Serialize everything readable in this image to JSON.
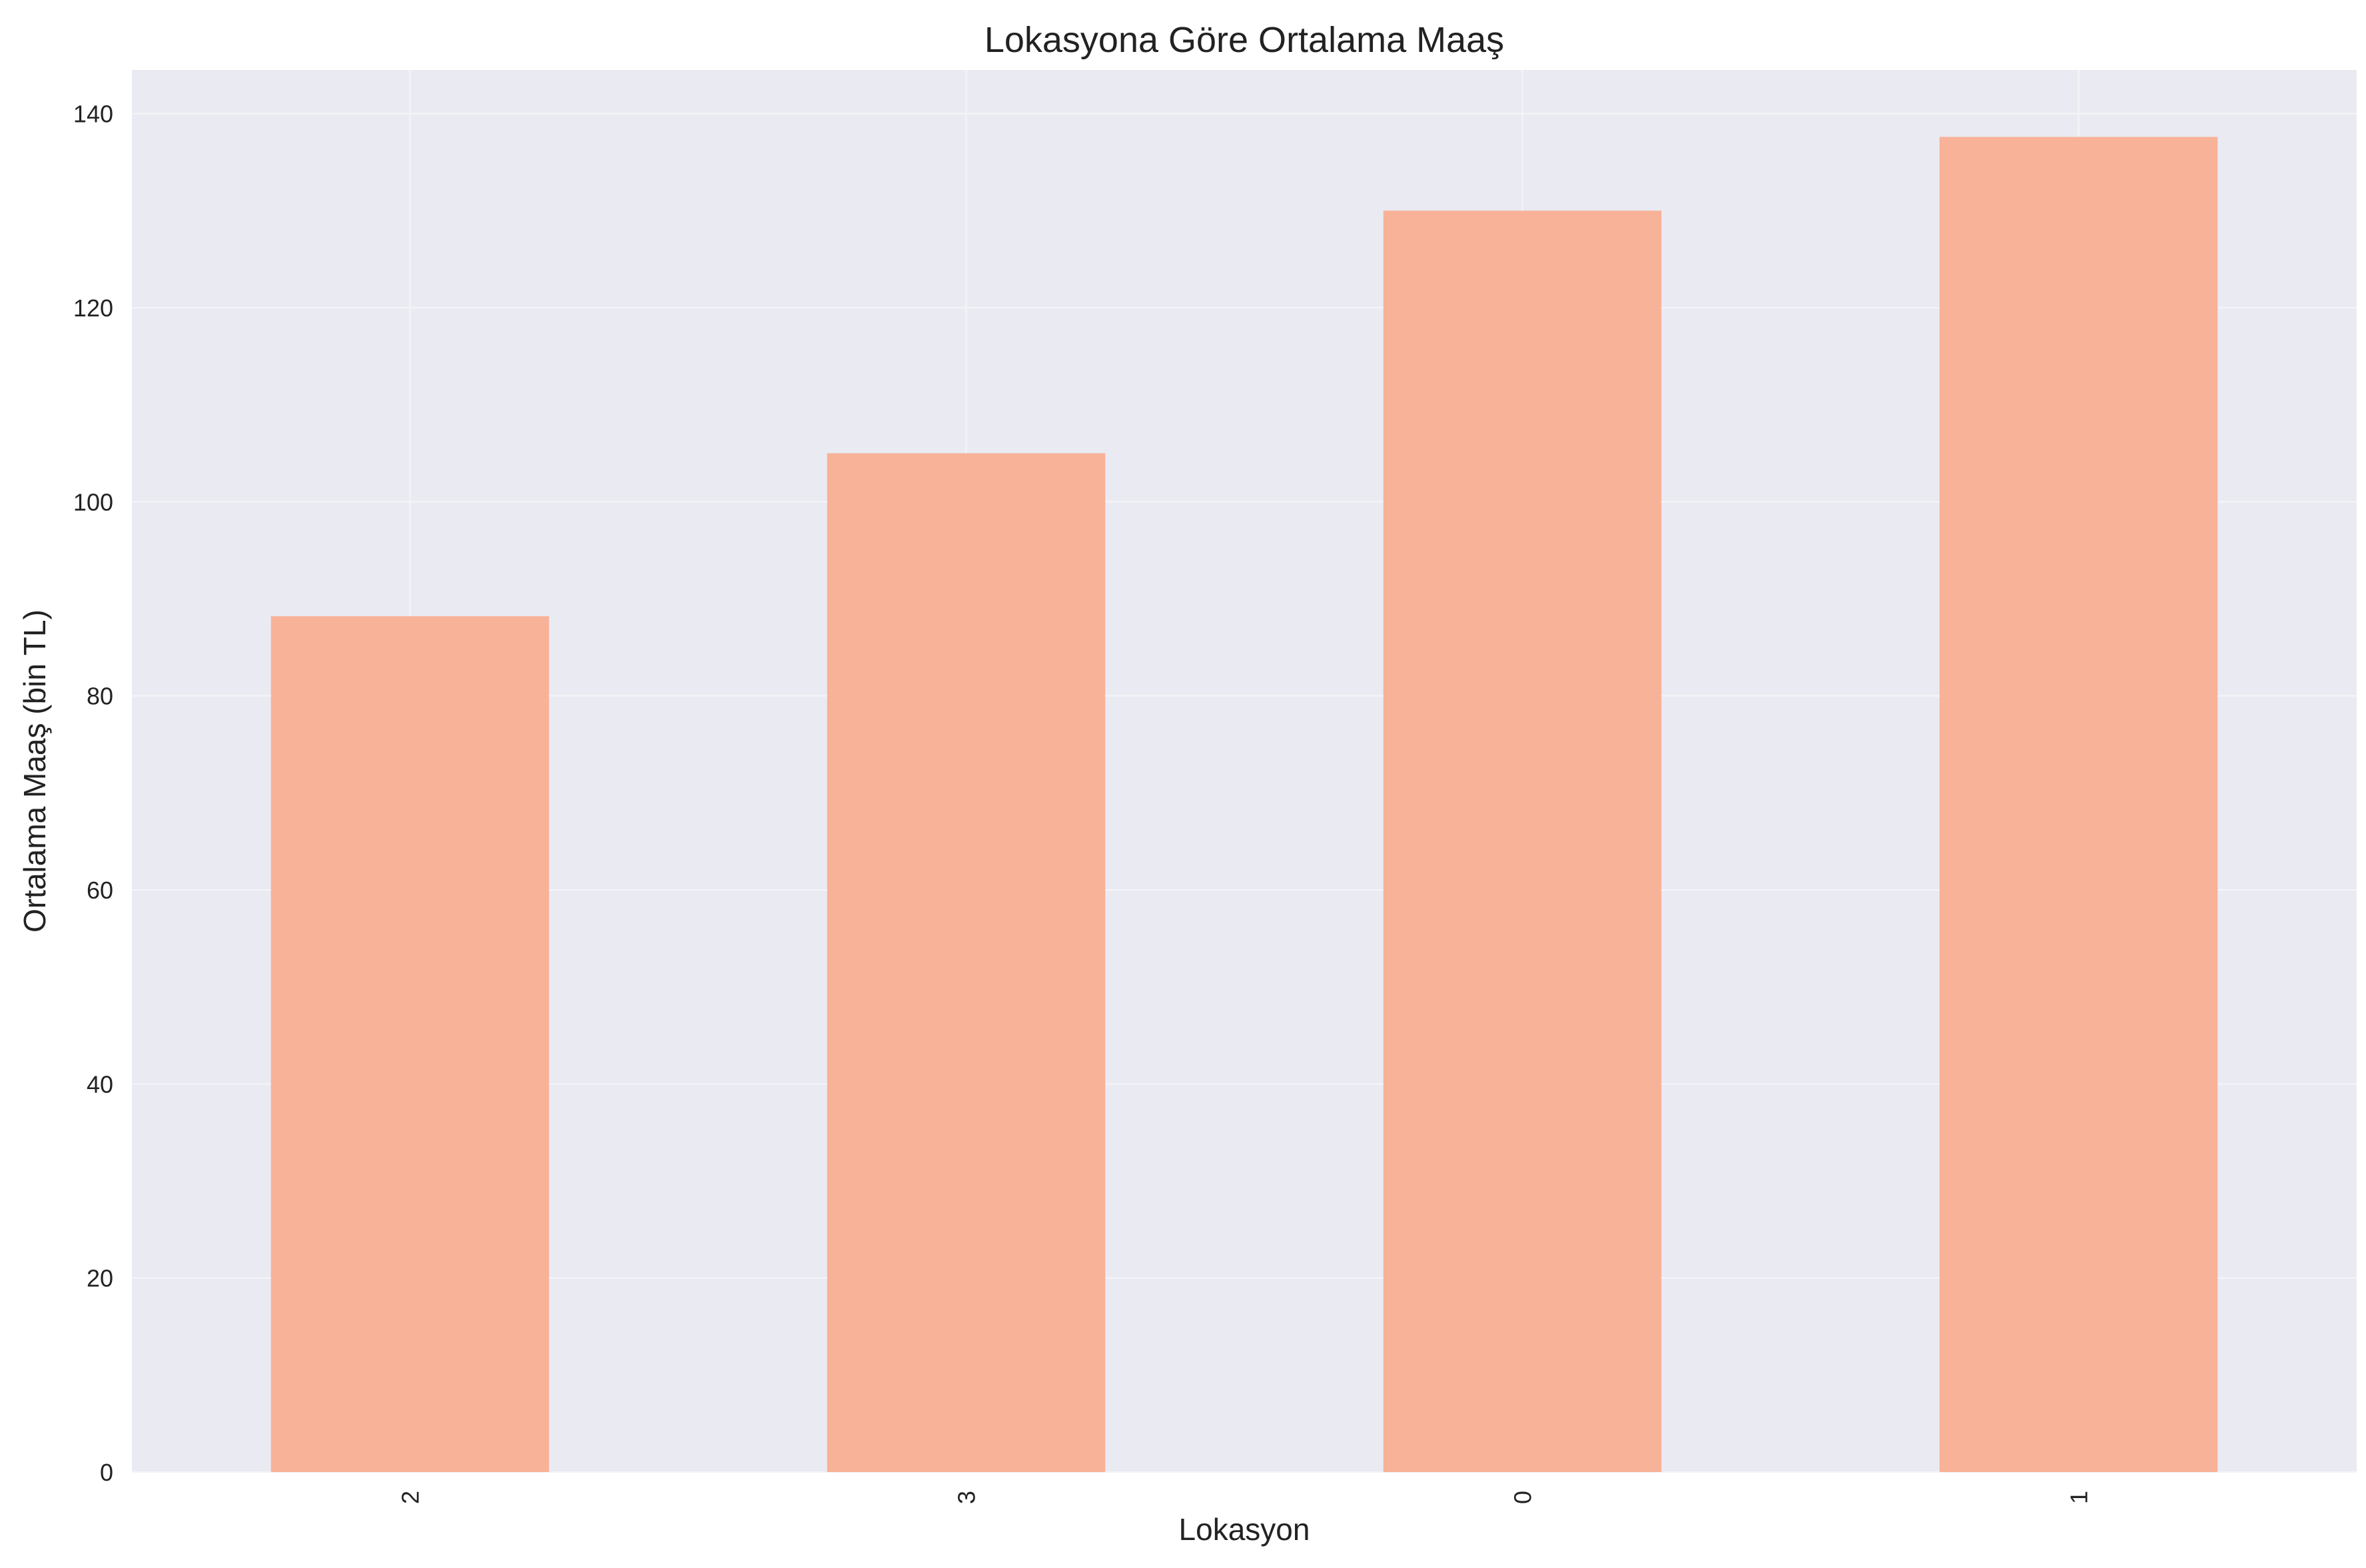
{
  "chart_data": {
    "type": "bar",
    "title": "Lokasyona Göre Ortalama Maaş",
    "xlabel": "Lokasyon",
    "ylabel": "Ortalama Maaş (bin TL)",
    "categories": [
      "2",
      "3",
      "0",
      "1"
    ],
    "values": [
      88.2,
      105.0,
      130.0,
      137.6
    ],
    "ylim": [
      0,
      144.5
    ],
    "yticks": [
      0,
      20,
      40,
      60,
      80,
      100,
      120,
      140
    ],
    "xtick_rotation": 90,
    "grid": true,
    "legend": "none",
    "colors": {
      "bar": "#f8b298",
      "plot_background": "#eaeaf2",
      "grid": "#f5f5f8",
      "text": "#222222"
    }
  }
}
